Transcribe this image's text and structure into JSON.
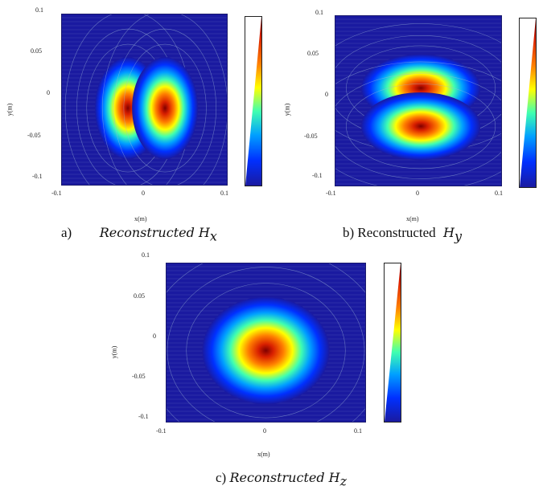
{
  "chart_data": [
    {
      "type": "heatmap",
      "panel_id": "a",
      "pattern": "two lobes along x (dipole, Hx)",
      "lobes": [
        {
          "x": -0.02,
          "y": -0.01
        },
        {
          "x": 0.025,
          "y": -0.01
        }
      ],
      "xlabel": "x(m)",
      "ylabel": "y(m)",
      "xlim": [
        -0.1,
        0.1
      ],
      "ylim": [
        -0.1,
        0.1
      ],
      "xticks": [
        "-0.1",
        "0",
        "0.1"
      ],
      "yticks": [
        "0.1",
        "0.05",
        "0",
        "-0.05",
        "-0.1"
      ],
      "colormap": "jet",
      "caption_prefix": "a)",
      "caption_text": "Reconstructed H",
      "caption_sub": "x"
    },
    {
      "type": "heatmap",
      "panel_id": "b",
      "pattern": "two lobes along y (dipole, Hy)",
      "lobes": [
        {
          "x": 0.003,
          "y": 0.015
        },
        {
          "x": 0.003,
          "y": -0.03
        }
      ],
      "xlabel": "x(m)",
      "ylabel": "y(m)",
      "xlim": [
        -0.1,
        0.1
      ],
      "ylim": [
        -0.1,
        0.1
      ],
      "xticks": [
        "-0.1",
        "0",
        "0.1"
      ],
      "yticks": [
        "0.1",
        "0.05",
        "0",
        "-0.05",
        "-0.1"
      ],
      "colormap": "jet",
      "caption_prefix": "b)",
      "caption_text": "Reconstructed",
      "caption_sub": "y"
    },
    {
      "type": "heatmap",
      "panel_id": "c",
      "pattern": "single central peak (Hz)",
      "lobes": [
        {
          "x": 0.0,
          "y": -0.01
        }
      ],
      "xlabel": "x(m)",
      "ylabel": "y(m)",
      "xlim": [
        -0.1,
        0.1
      ],
      "ylim": [
        -0.1,
        0.1
      ],
      "xticks": [
        "-0.1",
        "0",
        "0.1"
      ],
      "yticks": [
        "0.1",
        "0.05",
        "0",
        "-0.05",
        "-0.1"
      ],
      "colormap": "jet",
      "caption_prefix": "c)",
      "caption_text": "Reconstructed H",
      "caption_sub": "z"
    }
  ],
  "colors": {
    "background_blue": "#1a1aa0",
    "contour": "#9fb6d8"
  }
}
